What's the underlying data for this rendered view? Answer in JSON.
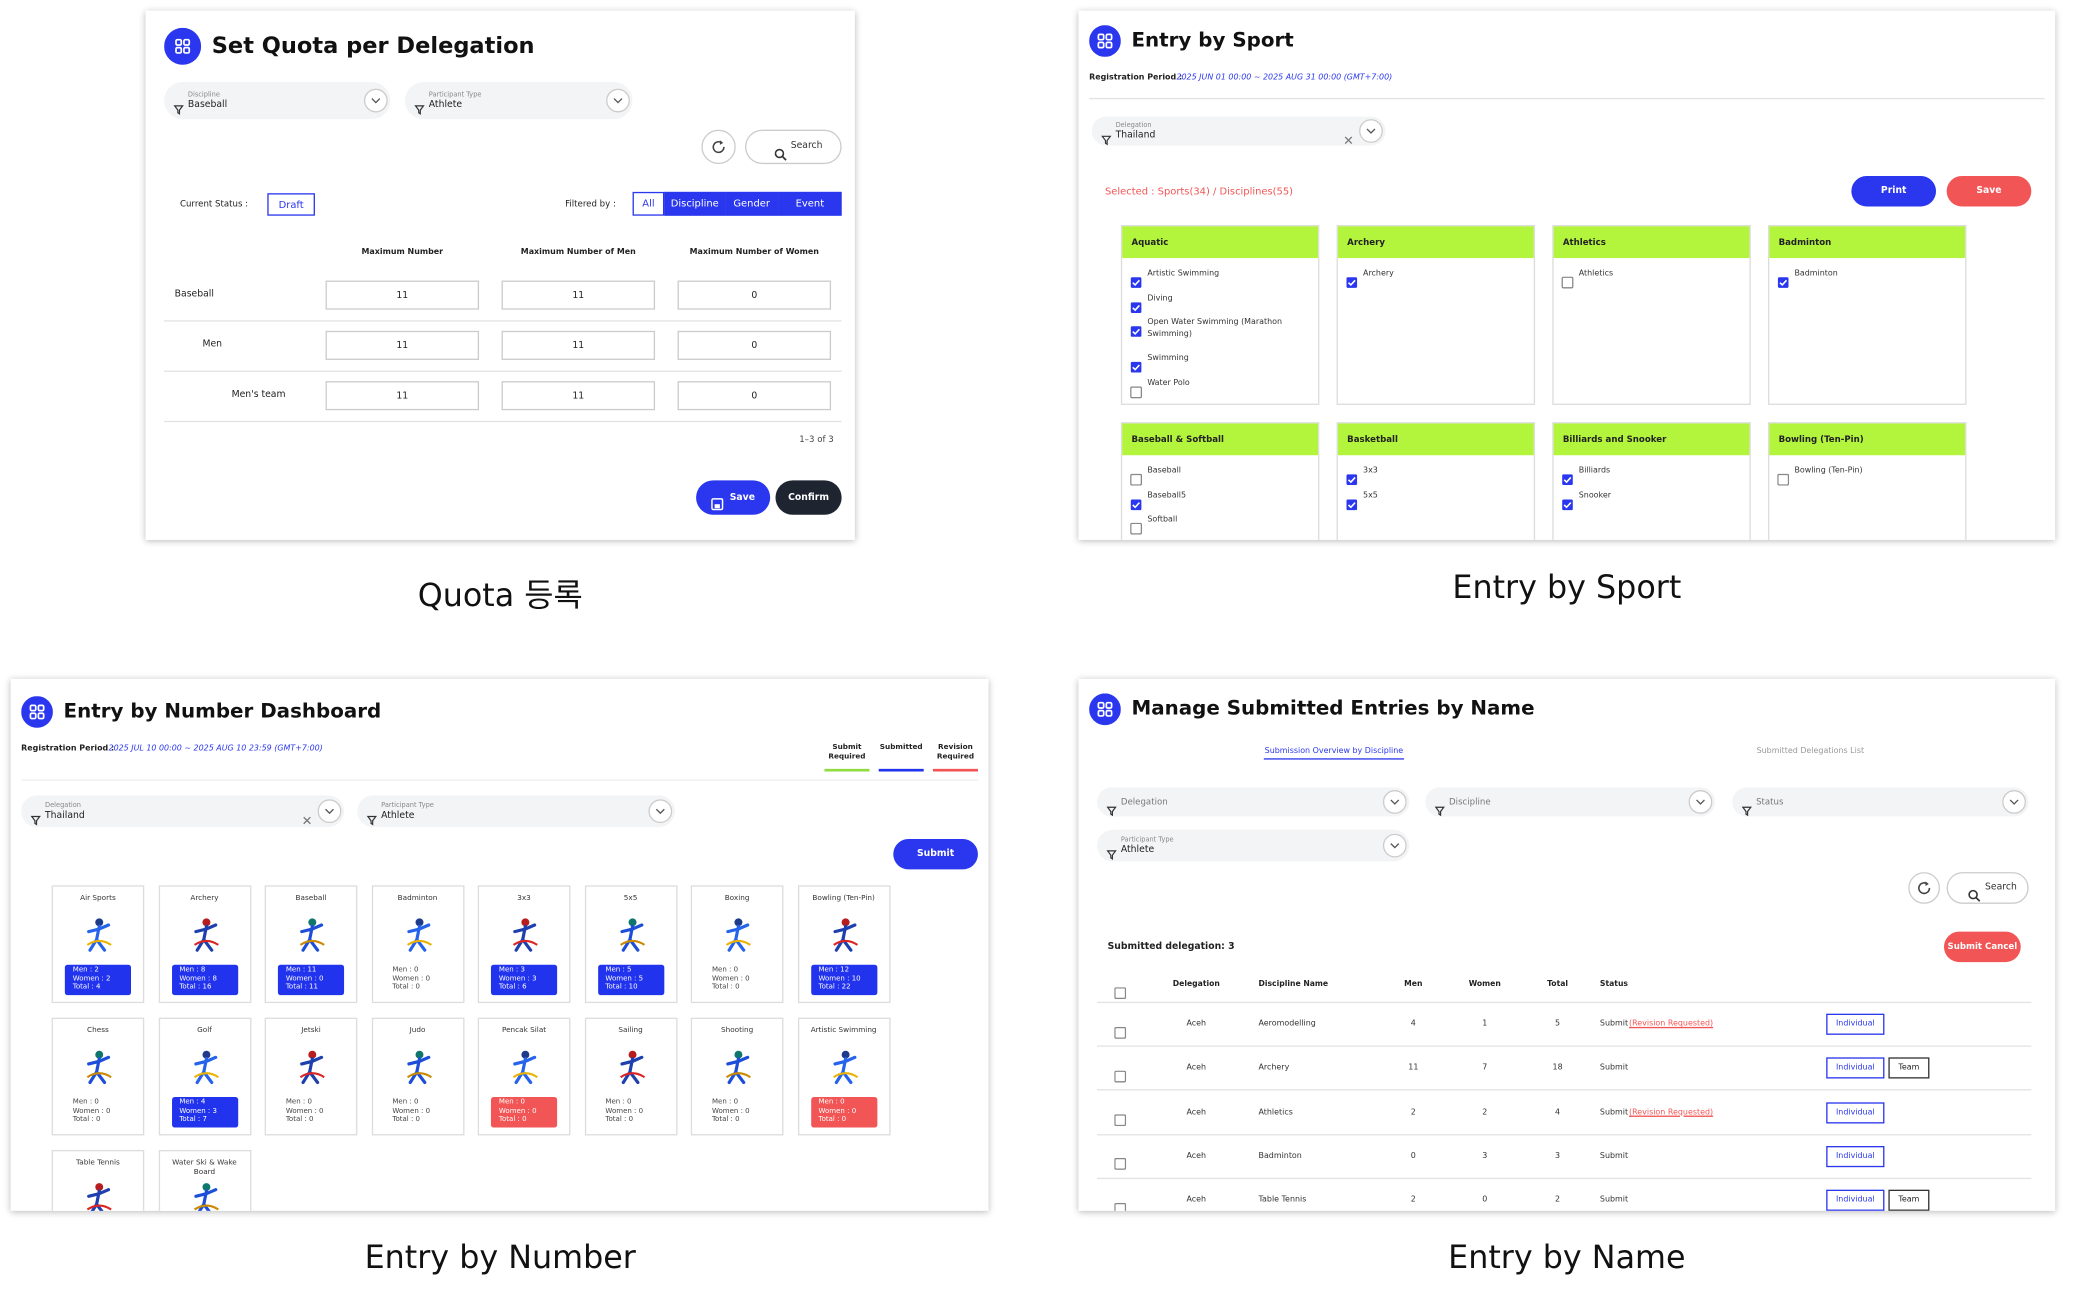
{
  "captions": [
    "Quota 등록",
    "Entry by Sport",
    "Entry by Number",
    "Entry by Name"
  ],
  "quota": {
    "title": "Set Quota per Delegation",
    "filters": [
      {
        "label": "Discipline",
        "value": "Baseball"
      },
      {
        "label": "Participant Type",
        "value": "Athlete"
      }
    ],
    "search": "Search",
    "status_label": "Current Status :",
    "status": "Draft",
    "filtered_by": "Filtered by :",
    "filter_tabs": [
      "All",
      "Discipline",
      "Gender",
      "Event"
    ],
    "columns": [
      "Maximum Number",
      "Maximum Number of Men",
      "Maximum Number of Women"
    ],
    "rows": [
      {
        "label": "Baseball",
        "values": [
          11,
          11,
          0
        ]
      },
      {
        "label": "Men",
        "values": [
          11,
          11,
          0
        ]
      },
      {
        "label": "Men's team",
        "values": [
          11,
          11,
          0
        ]
      }
    ],
    "pagination": "1–3 of 3",
    "save": "Save",
    "confirm": "Confirm"
  },
  "sport": {
    "title": "Entry by Sport",
    "period_label": "Registration Period :",
    "period": "2025 JUN 01 00:00 ~ 2025 AUG 31 00:00 (GMT+7:00)",
    "delegation": {
      "label": "Delegation",
      "value": "Thailand"
    },
    "selected": "Selected : Sports(34) / Disciplines(55)",
    "print": "Print",
    "save": "Save",
    "cards": [
      {
        "name": "Aquatic",
        "items": [
          {
            "label": "Artistic Swimming",
            "checked": true
          },
          {
            "label": "Diving",
            "checked": true
          },
          {
            "label": "Open Water Swimming (Marathon Swimming)",
            "checked": true
          },
          {
            "label": "Swimming",
            "checked": true
          },
          {
            "label": "Water Polo",
            "checked": false
          }
        ]
      },
      {
        "name": "Archery",
        "items": [
          {
            "label": "Archery",
            "checked": true
          }
        ]
      },
      {
        "name": "Athletics",
        "items": [
          {
            "label": "Athletics",
            "checked": false
          }
        ]
      },
      {
        "name": "Badminton",
        "items": [
          {
            "label": "Badminton",
            "checked": true
          }
        ]
      },
      {
        "name": "Baseball & Softball",
        "items": [
          {
            "label": "Baseball",
            "checked": false
          },
          {
            "label": "Baseball5",
            "checked": true
          },
          {
            "label": "Softball",
            "checked": false
          }
        ]
      },
      {
        "name": "Basketball",
        "items": [
          {
            "label": "3x3",
            "checked": true
          },
          {
            "label": "5x5",
            "checked": true
          }
        ]
      },
      {
        "name": "Billiards and Snooker",
        "items": [
          {
            "label": "Billiards",
            "checked": true
          },
          {
            "label": "Snooker",
            "checked": true
          }
        ]
      },
      {
        "name": "Bowling (Ten-Pin)",
        "items": [
          {
            "label": "Bowling (Ten-Pin)",
            "checked": false
          }
        ]
      }
    ]
  },
  "number": {
    "title": "Entry by Number Dashboard",
    "period_label": "Registration Period :",
    "period": "2025 JUL 10 00:00 ~ 2025 AUG 10 23:59 (GMT+7:00)",
    "legend": [
      {
        "label": "Submit Required",
        "color": "#8fdc3f"
      },
      {
        "label": "Submitted",
        "color": "#2233ee"
      },
      {
        "label": "Revision Required",
        "color": "#f25555"
      }
    ],
    "filters": [
      {
        "label": "Delegation",
        "value": "Thailand"
      },
      {
        "label": "Participant Type",
        "value": "Athlete"
      }
    ],
    "submit": "Submit",
    "sports": [
      {
        "name": "Air Sports",
        "color": "#2233ee",
        "stats": [
          "Men : 2",
          "Women : 2",
          "Total : 4"
        ]
      },
      {
        "name": "Archery",
        "color": "#2233ee",
        "stats": [
          "Men : 8",
          "Women : 8",
          "Total : 16"
        ]
      },
      {
        "name": "Baseball",
        "color": "#2233ee",
        "stats": [
          "Men : 11",
          "Women : 0",
          "Total : 11"
        ]
      },
      {
        "name": "Badminton",
        "stats": [
          "Men : 0",
          "Women : 0",
          "Total : 0"
        ]
      },
      {
        "name": "3x3",
        "color": "#2233ee",
        "stats": [
          "Men : 3",
          "Women : 3",
          "Total : 6"
        ]
      },
      {
        "name": "5x5",
        "color": "#2233ee",
        "stats": [
          "Men : 5",
          "Women : 5",
          "Total : 10"
        ]
      },
      {
        "name": "Boxing",
        "stats": [
          "Men : 0",
          "Women : 0",
          "Total : 0"
        ]
      },
      {
        "name": "Bowling (Ten-Pin)",
        "color": "#2233ee",
        "stats": [
          "Men : 12",
          "Women : 10",
          "Total : 22"
        ]
      },
      {
        "name": "Chess",
        "stats": [
          "Men : 0",
          "Women : 0",
          "Total : 0"
        ]
      },
      {
        "name": "Golf",
        "color": "#2233ee",
        "stats": [
          "Men : 4",
          "Women : 3",
          "Total : 7"
        ]
      },
      {
        "name": "Jetski",
        "stats": [
          "Men : 0",
          "Women : 0",
          "Total : 0"
        ]
      },
      {
        "name": "Judo",
        "stats": [
          "Men : 0",
          "Women : 0",
          "Total : 0"
        ]
      },
      {
        "name": "Pencak Silat",
        "color": "#f25555",
        "stats": [
          "Men : 0",
          "Women : 0",
          "Total : 0"
        ]
      },
      {
        "name": "Sailing",
        "stats": [
          "Men : 0",
          "Women : 0",
          "Total : 0"
        ]
      },
      {
        "name": "Shooting",
        "stats": [
          "Men : 0",
          "Women : 0",
          "Total : 0"
        ]
      },
      {
        "name": "Artistic Swimming",
        "color": "#f25555",
        "stats": [
          "Men : 0",
          "Women : 0",
          "Total : 0"
        ]
      },
      {
        "name": "Table Tennis",
        "stats": []
      },
      {
        "name": "Water Ski & Wake Board",
        "stats": []
      }
    ]
  },
  "name": {
    "title": "Manage Submitted Entries by Name",
    "tabs": [
      "Submission Overview by Discipline",
      "Submitted Delegations List"
    ],
    "filters": [
      {
        "label": "Delegation"
      },
      {
        "label": "Discipline"
      },
      {
        "label": "Status"
      },
      {
        "label": "Participant Type",
        "value": "Athlete"
      }
    ],
    "search": "Search",
    "submitted": "Submitted delegation: 3",
    "cancel": "Submit Cancel",
    "columns": [
      "Delegation",
      "Discipline Name",
      "Men",
      "Women",
      "Total",
      "Status"
    ],
    "rows": [
      {
        "delegation": "Aceh",
        "discipline": "Aeromodelling",
        "men": 4,
        "women": 1,
        "total": 5,
        "status": "Submit",
        "note": "(Revision Requested)",
        "buttons": [
          "Individual"
        ]
      },
      {
        "delegation": "Aceh",
        "discipline": "Archery",
        "men": 11,
        "women": 7,
        "total": 18,
        "status": "Submit",
        "buttons": [
          "Individual",
          "Team"
        ]
      },
      {
        "delegation": "Aceh",
        "discipline": "Athletics",
        "men": 2,
        "women": 2,
        "total": 4,
        "status": "Submit",
        "note": "(Revision Requested)",
        "buttons": [
          "Individual"
        ]
      },
      {
        "delegation": "Aceh",
        "discipline": "Badminton",
        "men": 0,
        "women": 3,
        "total": 3,
        "status": "Submit",
        "buttons": [
          "Individual"
        ]
      },
      {
        "delegation": "Aceh",
        "discipline": "Table Tennis",
        "men": 2,
        "women": 0,
        "total": 2,
        "status": "Submit",
        "buttons": [
          "Individual",
          "Team"
        ]
      }
    ]
  }
}
